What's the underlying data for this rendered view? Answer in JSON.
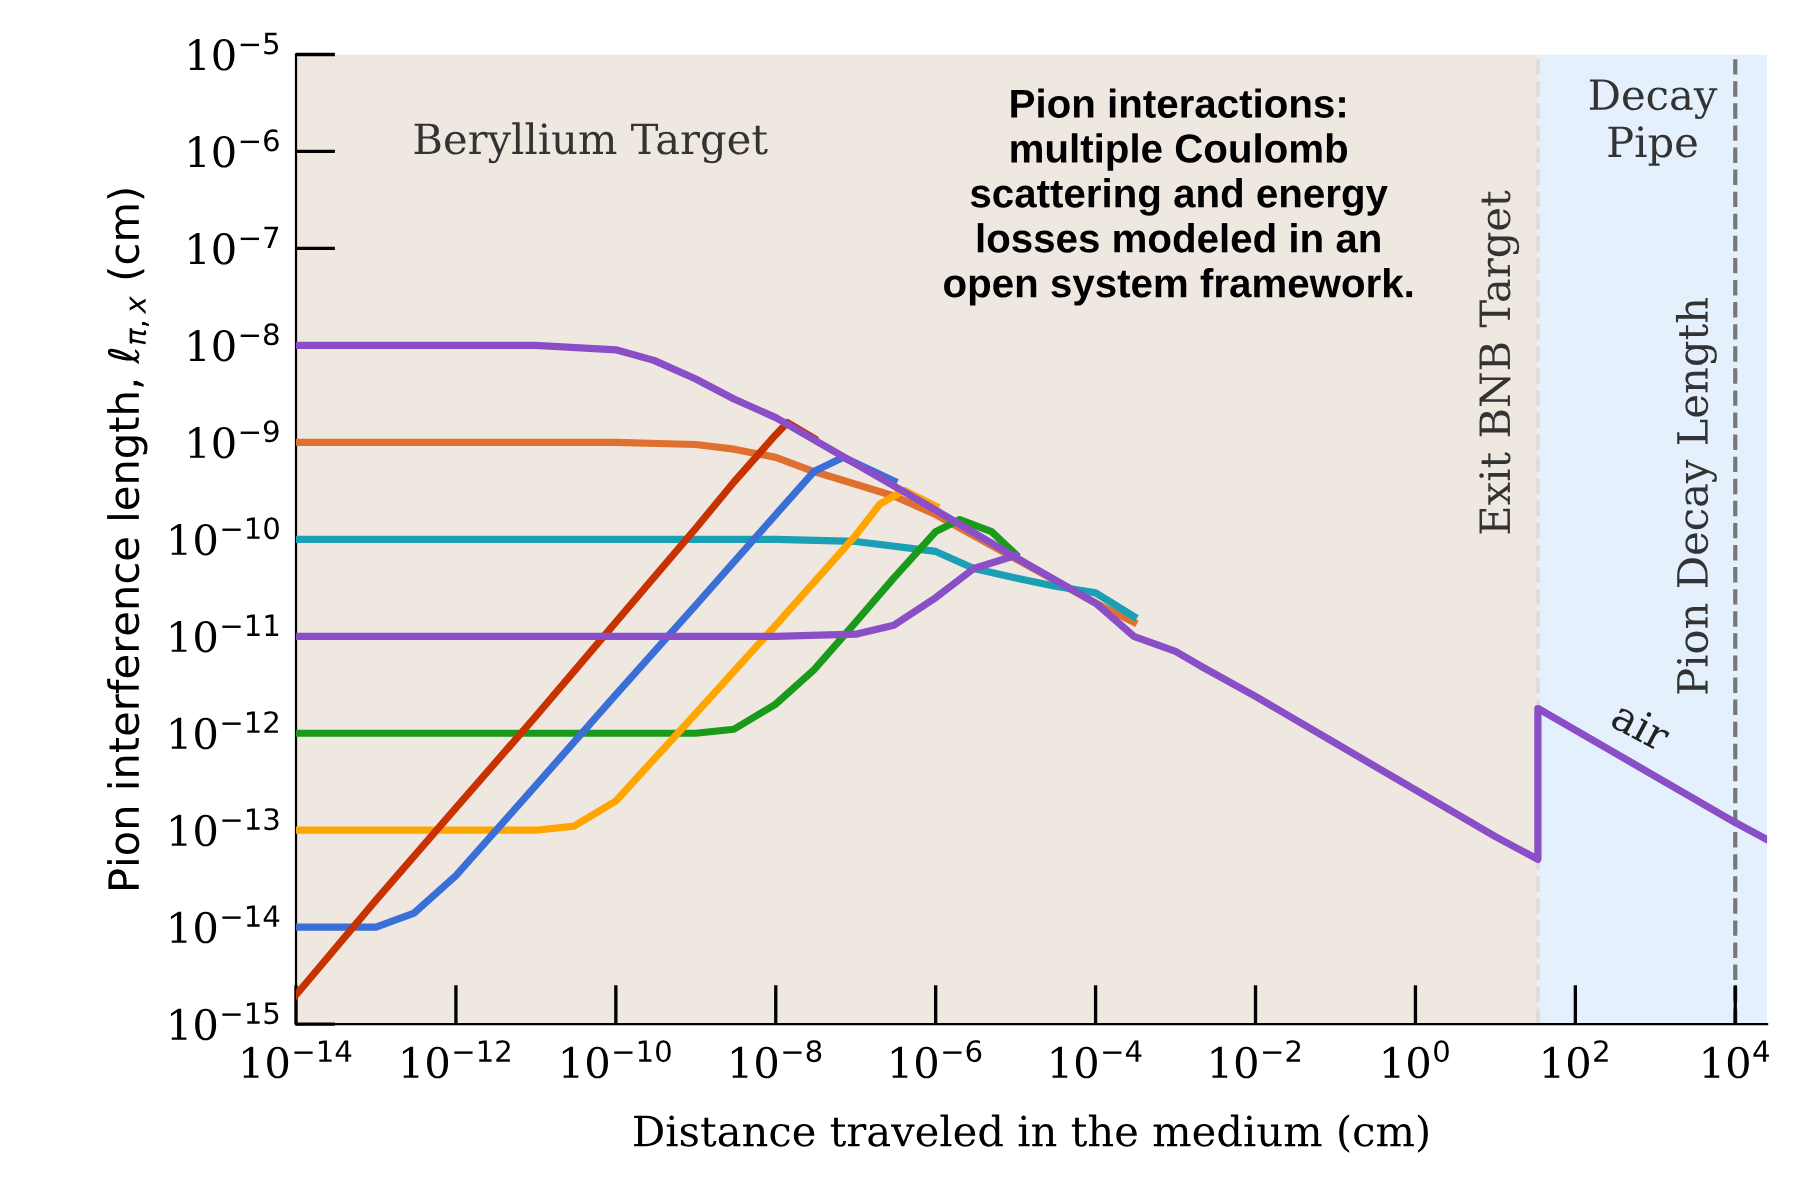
{
  "chart_data": {
    "type": "line",
    "xlabel": "Distance traveled in the medium (cm)",
    "ylabel": "Pion interference length, ℓ$_{π,x}$ (cm)",
    "log": "xy",
    "grid": false,
    "legend": false,
    "marker": "none",
    "line_style": "solid",
    "xlim": [
      1e-14,
      25000
    ],
    "ylim": [
      1e-15,
      1e-05
    ],
    "xticks": [
      {
        "value": 1e-14,
        "label": "10$^{−14}$"
      },
      {
        "value": 1e-12,
        "label": "10$^{−12}$"
      },
      {
        "value": 1e-10,
        "label": "10$^{−10}$"
      },
      {
        "value": 1e-08,
        "label": "10$^{−8}$"
      },
      {
        "value": 1e-06,
        "label": "10$^{−6}$"
      },
      {
        "value": 0.0001,
        "label": "10$^{−4}$"
      },
      {
        "value": 0.01,
        "label": "10$^{−2}$"
      },
      {
        "value": 1,
        "label": "10$^{0}$"
      },
      {
        "value": 100,
        "label": "10$^{2}$"
      },
      {
        "value": 10000,
        "label": "10$^{4}$"
      }
    ],
    "yticks": [
      {
        "value": 1e-15,
        "label": "10$^{−15}$"
      },
      {
        "value": 1e-14,
        "label": "10$^{−14}$"
      },
      {
        "value": 1e-13,
        "label": "10$^{−13}$"
      },
      {
        "value": 1e-12,
        "label": "10$^{−12}$"
      },
      {
        "value": 1e-11,
        "label": "10$^{−11}$"
      },
      {
        "value": 1e-10,
        "label": "10$^{−10}$"
      },
      {
        "value": 1e-09,
        "label": "10$^{−9}$"
      },
      {
        "value": 1e-08,
        "label": "10$^{−8}$"
      },
      {
        "value": 1e-07,
        "label": "10$^{−7}$"
      },
      {
        "value": 1e-06,
        "label": "10$^{−6}$"
      },
      {
        "value": 1e-05,
        "label": "10$^{−5}$"
      }
    ],
    "bands": [
      {
        "axis": "x",
        "from": 1e-14,
        "to": 34,
        "label": "Beryllium Target",
        "color": "#efe8e1"
      },
      {
        "axis": "x",
        "from": 34,
        "to": 25000,
        "label": "Decay Pipe",
        "color": "#e4f0fb"
      }
    ],
    "ref_lines": [
      {
        "axis": "x",
        "value": 34,
        "label": "Exit BNB Target",
        "color": "#e0dcd8",
        "line_style": "dashed"
      },
      {
        "axis": "x",
        "value": 10000,
        "label": "Pion Decay Length",
        "color": "#777777",
        "line_style": "dashed"
      }
    ],
    "annotations": [
      "Pion interactions: multiple Coulomb scattering and energy losses modeled in an open system framework.",
      "air"
    ],
    "series": [
      {
        "color": "#e07030",
        "x": [
          1e-14,
          1e-10,
          1e-09,
          3e-09,
          1e-08,
          3e-08,
          1e-07,
          3e-07,
          1e-06,
          1e-05,
          0.0001,
          0.0003
        ],
        "values": [
          1e-09,
          1e-09,
          9.5e-10,
          8.5e-10,
          7e-10,
          5e-10,
          3.7e-10,
          2.8e-10,
          1.8e-10,
          6.3e-11,
          2.2e-11,
          1.4e-11
        ]
      },
      {
        "color": "#1a9fb5",
        "x": [
          1e-14,
          1e-08,
          1e-07,
          1e-06,
          3e-06,
          1e-05,
          3e-05,
          0.0001,
          0.0003
        ],
        "values": [
          1e-10,
          1e-10,
          9.5e-11,
          7.5e-11,
          5e-11,
          4e-11,
          3.3e-11,
          2.8e-11,
          1.6e-11
        ]
      },
      {
        "color": "#1a9a1a",
        "x": [
          1e-14,
          1e-09,
          3e-09,
          1e-08,
          3e-08,
          1e-07,
          3e-07,
          1e-06,
          2e-06,
          5e-06,
          1e-05
        ],
        "values": [
          1e-12,
          1e-12,
          1.1e-12,
          2e-12,
          4.5e-12,
          1.4e-11,
          4e-11,
          1.2e-10,
          1.6e-10,
          1.2e-10,
          7e-11
        ]
      },
      {
        "color": "#ffa500",
        "x": [
          1e-14,
          1e-11,
          3e-11,
          1e-10,
          1e-09,
          1e-08,
          1e-07,
          2e-07,
          4e-07,
          1e-06
        ],
        "values": [
          1e-13,
          1e-13,
          1.1e-13,
          2e-13,
          1.6e-12,
          1.3e-11,
          1.1e-10,
          2.3e-10,
          3.2e-10,
          2.2e-10
        ]
      },
      {
        "color": "#3a6fd8",
        "x": [
          1e-14,
          1e-13,
          3e-13,
          1e-12,
          1e-11,
          1e-10,
          1e-09,
          1e-08,
          3e-08,
          7e-08,
          3e-07
        ],
        "values": [
          1e-14,
          1e-14,
          1.4e-14,
          3.4e-14,
          2.9e-13,
          2.5e-12,
          2.1e-11,
          1.8e-10,
          5e-10,
          7e-10,
          4e-10
        ]
      },
      {
        "color": "#c83200",
        "x": [
          1e-14,
          1e-13,
          1e-12,
          1e-11,
          1e-10,
          1e-09,
          3e-09,
          1e-08,
          1.4e-08,
          3e-08
        ],
        "values": [
          2e-15,
          1.9e-14,
          1.7e-13,
          1.5e-12,
          1.4e-11,
          1.3e-10,
          3.9e-10,
          1.2e-09,
          1.6e-09,
          1.1e-09
        ]
      },
      {
        "color": "#8a4fc7",
        "x": [
          1e-14,
          1e-08,
          1e-07,
          3e-07,
          1e-06,
          3e-06,
          1e-05
        ],
        "values": [
          1e-11,
          1e-11,
          1.05e-11,
          1.3e-11,
          2.5e-11,
          5e-11,
          6.8e-11
        ]
      },
      {
        "color": "#8a4fc7",
        "x": [
          1e-14,
          1e-11,
          1e-10,
          3e-10,
          1e-09,
          3e-09,
          1e-08,
          1e-07,
          1e-06,
          1e-05,
          0.0001,
          0.0003,
          0.001,
          0.002,
          0.01,
          0.1,
          1,
          10,
          34,
          34,
          1000,
          10000,
          25000
        ],
        "values": [
          1e-08,
          1e-08,
          9e-09,
          7e-09,
          4.5e-09,
          2.8e-09,
          1.8e-09,
          6e-10,
          2e-10,
          6.5e-11,
          2.2e-11,
          1e-11,
          7e-12,
          5e-12,
          2.4e-12,
          7.9e-13,
          2.6e-13,
          8.6e-14,
          5e-14,
          1.8e-12,
          3.6e-13,
          1.2e-13,
          8e-14
        ]
      }
    ]
  }
}
